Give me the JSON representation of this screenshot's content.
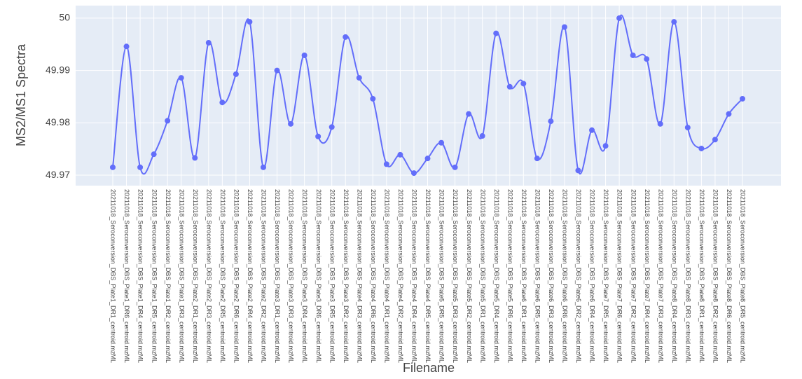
{
  "chart_data": {
    "type": "line",
    "x_label": "Filename",
    "y_label": "MS2/MS1 Spectra",
    "categories": [
      "20211018_Seroconversion_DBS_Plate1_DR1_centroid.mzML",
      "20211018_Seroconversion_DBS_Plate1_DR6_centroid.mzML",
      "20211018_Seroconversion_DBS_Plate1_DR4_centroid.mzML",
      "20211018_Seroconversion_DBS_Plate1_DR5_centroid.mzML",
      "20211018_Seroconversion_DBS_Plate1_DR2_centroid.mzML",
      "20211018_Seroconversion_DBS_Plate1_DR3_centroid.mzML",
      "20211018_Seroconversion_DBS_Plate2_DR1_centroid.mzML",
      "20211018_Seroconversion_DBS_Plate2_DR3_centroid.mzML",
      "20211018_Seroconversion_DBS_Plate2_DR5_centroid.mzML",
      "20211018_Seroconversion_DBS_Plate2_DR6_centroid.mzML",
      "20211018_Seroconversion_DBS_Plate2_DR4_centroid.mzML",
      "20211018_Seroconversion_DBS_Plate2_DR2_centroid.mzML",
      "20211018_Seroconversion_DBS_Plate3_DR1_centroid.mzML",
      "20211018_Seroconversion_DBS_Plate3_DR3_centroid.mzML",
      "20211018_Seroconversion_DBS_Plate3_DR4_centroid.mzML",
      "20211018_Seroconversion_DBS_Plate3_DR6_centroid.mzML",
      "20211018_Seroconversion_DBS_Plate3_DR5_centroid.mzML",
      "20211018_Seroconversion_DBS_Plate3_DR2_centroid.mzML",
      "20211018_Seroconversion_DBS_Plate4_DR3_centroid.mzML",
      "20211018_Seroconversion_DBS_Plate4_DR6_centroid.mzML",
      "20211018_Seroconversion_DBS_Plate4_DR1_centroid.mzML",
      "20211018_Seroconversion_DBS_Plate4_DR2_centroid.mzML",
      "20211018_Seroconversion_DBS_Plate4_DR4_centroid.mzML",
      "20211018_Seroconversion_DBS_Plate4_DR5_centroid.mzML",
      "20211018_Seroconversion_DBS_Plate5_DR5_centroid.mzML",
      "20211018_Seroconversion_DBS_Plate5_DR3_centroid.mzML",
      "20211018_Seroconversion_DBS_Plate5_DR2_centroid.mzML",
      "20211018_Seroconversion_DBS_Plate5_DR1_centroid.mzML",
      "20211018_Seroconversion_DBS_Plate5_DR4_centroid.mzML",
      "20211018_Seroconversion_DBS_Plate5_DR6_centroid.mzML",
      "20211018_Seroconversion_DBS_Plate6_DR1_centroid.mzML",
      "20211018_Seroconversion_DBS_Plate6_DR5_centroid.mzML",
      "20211018_Seroconversion_DBS_Plate6_DR3_centroid.mzML",
      "20211018_Seroconversion_DBS_Plate6_DR6_centroid.mzML",
      "20211018_Seroconversion_DBS_Plate6_DR2_centroid.mzML",
      "20211018_Seroconversion_DBS_Plate6_DR4_centroid.mzML",
      "20211018_Seroconversion_DBS_Plate7_DR5_centroid.mzML",
      "20211018_Seroconversion_DBS_Plate7_DR6_centroid.mzML",
      "20211018_Seroconversion_DBS_Plate7_DR2_centroid.mzML",
      "20211018_Seroconversion_DBS_Plate7_DR4_centroid.mzML",
      "20211018_Seroconversion_DBS_Plate7_DR3_centroid.mzML",
      "20211018_Seroconversion_DBS_Plate8_DR4_centroid.mzML",
      "20211018_Seroconversion_DBS_Plate8_DR3_centroid.mzML",
      "20211018_Seroconversion_DBS_Plate8_DR1_centroid.mzML",
      "20211018_Seroconversion_DBS_Plate8_DR2_centroid.mzML",
      "20211018_Seroconversion_DBS_Plate8_DR6_centroid.mzML",
      "20211018_Seroconversion_DBS_Plate8_DR5_centroid.mzML"
    ],
    "values": [
      49.9715,
      49.9946,
      49.9715,
      49.974,
      49.9804,
      49.9886,
      49.9733,
      49.9953,
      49.9839,
      49.9893,
      49.9993,
      49.9715,
      49.99,
      49.9798,
      49.9929,
      49.9774,
      49.9792,
      49.9964,
      49.9886,
      49.9846,
      49.9721,
      49.9739,
      49.9704,
      49.9732,
      49.9762,
      49.9715,
      49.9817,
      49.9775,
      49.9971,
      49.9869,
      49.9875,
      49.9732,
      49.9803,
      49.9983,
      49.9709,
      49.9786,
      49.9756,
      50,
      49.9929,
      49.9922,
      49.9798,
      49.9993,
      49.9791,
      49.9751,
      49.9768,
      49.9817,
      49.9846
    ],
    "color": "#636efa",
    "spline": true,
    "grid": true,
    "ylim": [
      49.968,
      50.0024
    ],
    "yticks": [
      49.97,
      49.98,
      49.99,
      50
    ]
  }
}
